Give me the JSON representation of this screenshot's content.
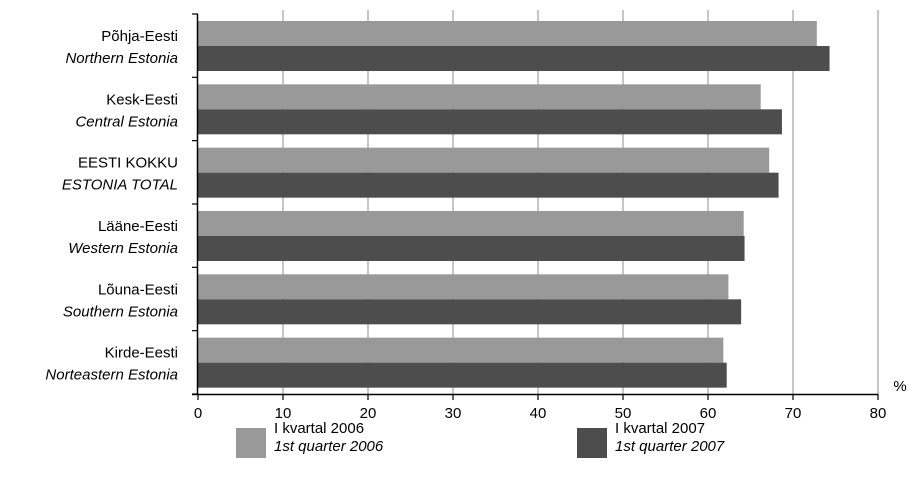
{
  "chart_data": {
    "type": "bar",
    "orientation": "horizontal",
    "categories": [
      {
        "label": "Põhja-Eesti",
        "label_en": "Northern Estonia"
      },
      {
        "label": "Kesk-Eesti",
        "label_en": "Central Estonia"
      },
      {
        "label": "EESTI KOKKU",
        "label_en": "ESTONIA TOTAL"
      },
      {
        "label": "Lääne-Eesti",
        "label_en": "Western Estonia"
      },
      {
        "label": "Lõuna-Eesti",
        "label_en": "Southern Estonia"
      },
      {
        "label": "Kirde-Eesti",
        "label_en": "Norteastern Estonia"
      }
    ],
    "series": [
      {
        "name": "I kvartal 2006",
        "name_en": "1st quarter 2006",
        "color": "#999999",
        "values": [
          72.8,
          66.2,
          67.2,
          64.2,
          62.4,
          61.8
        ]
      },
      {
        "name": "I kvartal 2007",
        "name_en": "1st quarter 2007",
        "color": "#4d4d4d",
        "values": [
          74.3,
          68.7,
          68.3,
          64.3,
          63.9,
          62.2
        ]
      }
    ],
    "xlim": [
      0,
      80
    ],
    "xticks": [
      "0",
      "10",
      "20",
      "30",
      "40",
      "50",
      "60",
      "70",
      "80"
    ],
    "unit": "%",
    "grid": "vertical",
    "legend": "bottom"
  }
}
